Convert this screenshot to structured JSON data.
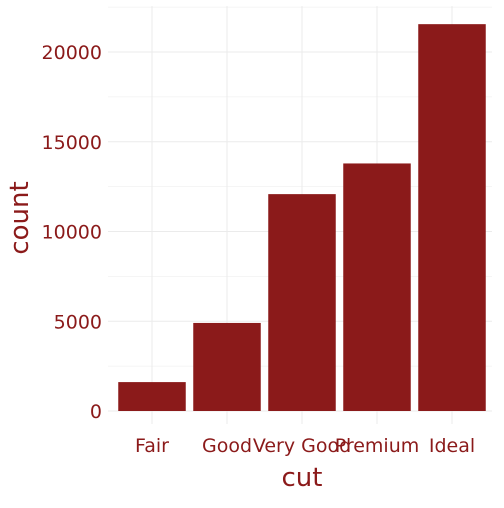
{
  "chart_data": {
    "type": "bar",
    "categories": [
      "Fair",
      "Good",
      "Very Good",
      "Premium",
      "Ideal"
    ],
    "values": [
      1610,
      4906,
      12082,
      13791,
      21551
    ],
    "title": "",
    "xlabel": "cut",
    "ylabel": "count",
    "ylim": [
      0,
      22000
    ],
    "yticks": [
      0,
      5000,
      10000,
      15000,
      20000
    ],
    "grid": true,
    "legend": "none",
    "bar_color": "#8b1a1a",
    "text_color": "#8b1a1a",
    "grid_color": "#ebebeb"
  }
}
